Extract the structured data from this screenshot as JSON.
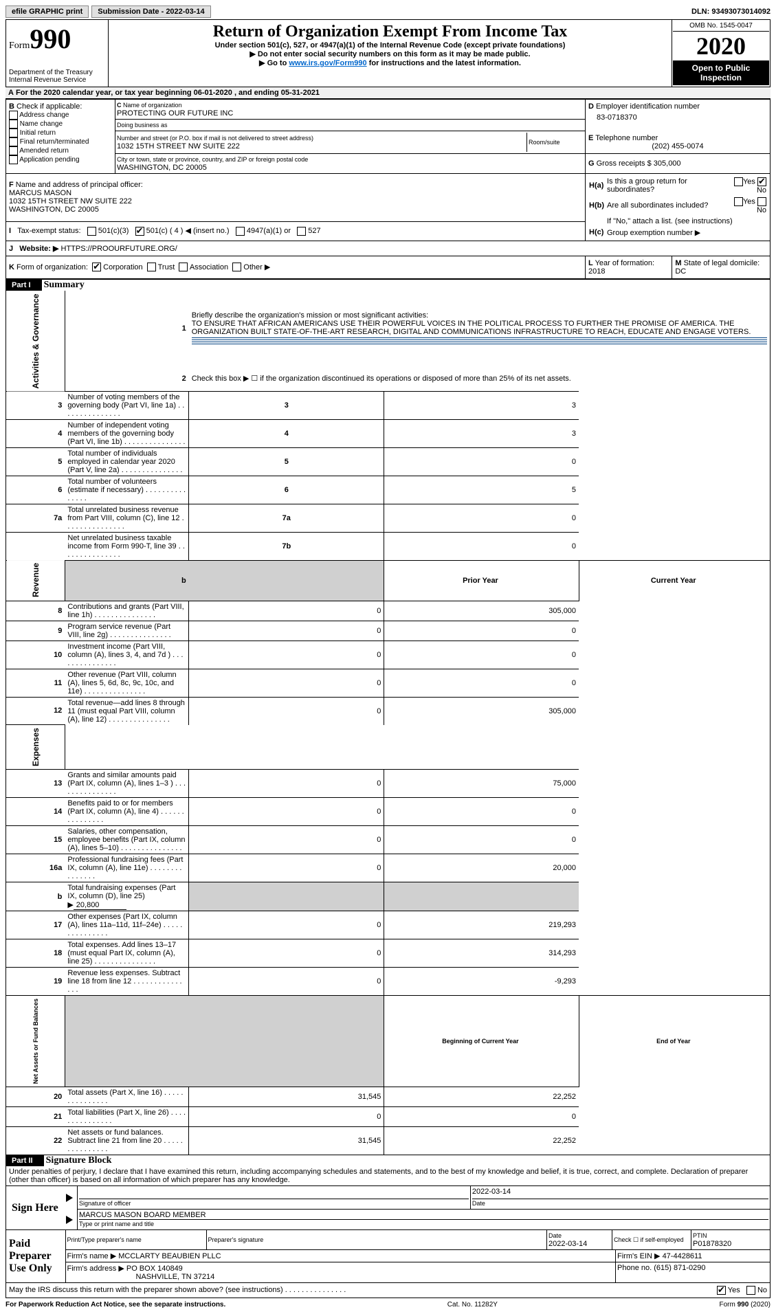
{
  "topbar": {
    "efile": "efile GRAPHIC print",
    "submission_label": "Submission Date - 2022-03-14",
    "dln": "DLN: 93493073014092"
  },
  "header": {
    "form_prefix": "Form",
    "form_num": "990",
    "dept1": "Department of the Treasury",
    "dept2": "Internal Revenue Service",
    "title": "Return of Organization Exempt From Income Tax",
    "subtitle": "Under section 501(c), 527, or 4947(a)(1) of the Internal Revenue Code (except private foundations)",
    "note1": "Do not enter social security numbers on this form as it may be made public.",
    "note2_pre": "Go to ",
    "note2_link": "www.irs.gov/Form990",
    "note2_post": " for instructions and the latest information.",
    "omb": "OMB No. 1545-0047",
    "year": "2020",
    "open": "Open to Public Inspection"
  },
  "A": {
    "text": "For the 2020 calendar year, or tax year beginning 06-01-2020    , and ending 05-31-2021"
  },
  "B": {
    "label": "Check if applicable:",
    "opts": [
      "Address change",
      "Name change",
      "Initial return",
      "Final return/terminated",
      "Amended return",
      "Application pending"
    ]
  },
  "C": {
    "name_label": "Name of organization",
    "name": "PROTECTING OUR FUTURE INC",
    "dba_label": "Doing business as",
    "street_label": "Number and street (or P.O. box if mail is not delivered to street address)",
    "room_label": "Room/suite",
    "street": "1032 15TH STREET NW SUITE 222",
    "city_label": "City or town, state or province, country, and ZIP or foreign postal code",
    "city": "WASHINGTON, DC  20005"
  },
  "D": {
    "label": "Employer identification number",
    "val": "83-0718370"
  },
  "E": {
    "label": "Telephone number",
    "val": "(202) 455-0074"
  },
  "F": {
    "label": "Name and address of principal officer:",
    "name": "MARCUS MASON",
    "addr1": "1032 15TH STREET NW SUITE 222",
    "addr2": "WASHINGTON, DC  20005"
  },
  "G": {
    "label": "Gross receipts $",
    "val": "305,000"
  },
  "H": {
    "a": "Is this a group return for subordinates?",
    "b": "Are all subordinates included?",
    "b_note": "If \"No,\" attach a list. (see instructions)",
    "c": "Group exemption number ▶",
    "yes": "Yes",
    "no": "No"
  },
  "I": {
    "label": "Tax-exempt status:",
    "o1": "501(c)(3)",
    "o2": "501(c) ( 4 ) ◀ (insert no.)",
    "o3": "4947(a)(1) or",
    "o4": "527"
  },
  "J": {
    "label": "Website: ▶",
    "val": "HTTPS://PROOURFUTURE.ORG/"
  },
  "K": {
    "label": "Form of organization:",
    "o1": "Corporation",
    "o2": "Trust",
    "o3": "Association",
    "o4": "Other ▶"
  },
  "L": {
    "label": "Year of formation:",
    "val": "2018"
  },
  "M": {
    "label": "State of legal domicile:",
    "val": "DC"
  },
  "part1": {
    "header_num": "Part I",
    "header_title": "Summary",
    "line1_label": "Briefly describe the organization's mission or most significant activities:",
    "line1_text": "TO ENSURE THAT AFRICAN AMERICANS USE THEIR POWERFUL VOICES IN THE POLITICAL PROCESS TO FURTHER THE PROMISE OF AMERICA. THE ORGANIZATION BUILT STATE-OF-THE-ART RESEARCH, DIGITAL AND COMMUNICATIONS INFRASTRUCTURE TO REACH, EDUCATE AND ENGAGE VOTERS.",
    "line2": "Check this box ▶ ☐ if the organization discontinued its operations or disposed of more than 25% of its net assets.",
    "lines_gov": [
      {
        "n": "3",
        "d": "Number of voting members of the governing body (Part VI, line 1a)",
        "box": "3",
        "v": "3"
      },
      {
        "n": "4",
        "d": "Number of independent voting members of the governing body (Part VI, line 1b)",
        "box": "4",
        "v": "3"
      },
      {
        "n": "5",
        "d": "Total number of individuals employed in calendar year 2020 (Part V, line 2a)",
        "box": "5",
        "v": "0"
      },
      {
        "n": "6",
        "d": "Total number of volunteers (estimate if necessary)",
        "box": "6",
        "v": "5"
      },
      {
        "n": "7a",
        "d": "Total unrelated business revenue from Part VIII, column (C), line 12",
        "box": "7a",
        "v": "0"
      },
      {
        "n": "",
        "d": "Net unrelated business taxable income from Form 990-T, line 39",
        "box": "7b",
        "v": "0"
      }
    ],
    "col_prior": "Prior Year",
    "col_current": "Current Year",
    "lines_rev": [
      {
        "n": "8",
        "d": "Contributions and grants (Part VIII, line 1h)",
        "p": "0",
        "c": "305,000"
      },
      {
        "n": "9",
        "d": "Program service revenue (Part VIII, line 2g)",
        "p": "0",
        "c": "0"
      },
      {
        "n": "10",
        "d": "Investment income (Part VIII, column (A), lines 3, 4, and 7d )",
        "p": "0",
        "c": "0"
      },
      {
        "n": "11",
        "d": "Other revenue (Part VIII, column (A), lines 5, 6d, 8c, 9c, 10c, and 11e)",
        "p": "0",
        "c": "0"
      },
      {
        "n": "12",
        "d": "Total revenue—add lines 8 through 11 (must equal Part VIII, column (A), line 12)",
        "p": "0",
        "c": "305,000"
      }
    ],
    "lines_exp": [
      {
        "n": "13",
        "d": "Grants and similar amounts paid (Part IX, column (A), lines 1–3 )",
        "p": "0",
        "c": "75,000"
      },
      {
        "n": "14",
        "d": "Benefits paid to or for members (Part IX, column (A), line 4)",
        "p": "0",
        "c": "0"
      },
      {
        "n": "15",
        "d": "Salaries, other compensation, employee benefits (Part IX, column (A), lines 5–10)",
        "p": "0",
        "c": "0"
      },
      {
        "n": "16a",
        "d": "Professional fundraising fees (Part IX, column (A), line 11e)",
        "p": "0",
        "c": "20,000"
      }
    ],
    "line_b": {
      "n": "b",
      "d": "Total fundraising expenses (Part IX, column (D), line 25) ▶",
      "v": "20,800"
    },
    "lines_exp2": [
      {
        "n": "17",
        "d": "Other expenses (Part IX, column (A), lines 11a–11d, 11f–24e)",
        "p": "0",
        "c": "219,293"
      },
      {
        "n": "18",
        "d": "Total expenses. Add lines 13–17 (must equal Part IX, column (A), line 25)",
        "p": "0",
        "c": "314,293"
      },
      {
        "n": "19",
        "d": "Revenue less expenses. Subtract line 18 from line 12",
        "p": "0",
        "c": "-9,293"
      }
    ],
    "col_begin": "Beginning of Current Year",
    "col_end": "End of Year",
    "lines_net": [
      {
        "n": "20",
        "d": "Total assets (Part X, line 16)",
        "p": "31,545",
        "c": "22,252"
      },
      {
        "n": "21",
        "d": "Total liabilities (Part X, line 26)",
        "p": "0",
        "c": "0"
      },
      {
        "n": "22",
        "d": "Net assets or fund balances. Subtract line 21 from line 20",
        "p": "31,545",
        "c": "22,252"
      }
    ],
    "vlabels": {
      "gov": "Activities & Governance",
      "rev": "Revenue",
      "exp": "Expenses",
      "net": "Net Assets or Fund Balances"
    }
  },
  "part2": {
    "header_num": "Part II",
    "header_title": "Signature Block",
    "penalties": "Under penalties of perjury, I declare that I have examined this return, including accompanying schedules and statements, and to the best of my knowledge and belief, it is true, correct, and complete. Declaration of preparer (other than officer) is based on all information of which preparer has any knowledge.",
    "sign_here": "Sign Here",
    "sig_officer": "Signature of officer",
    "sig_date": "2022-03-14",
    "date_label": "Date",
    "officer_name": "MARCUS MASON  BOARD MEMBER",
    "type_name": "Type or print name and title",
    "paid": "Paid Preparer Use Only",
    "print_name_label": "Print/Type preparer's name",
    "prep_sig_label": "Preparer's signature",
    "prep_date_label": "Date",
    "prep_date": "2022-03-14",
    "check_if": "Check ☐ if self-employed",
    "ptin_label": "PTIN",
    "ptin": "P01878320",
    "firm_name_label": "Firm's name    ▶",
    "firm_name": "MCCLARTY BEAUBIEN PLLC",
    "firm_ein_label": "Firm's EIN ▶",
    "firm_ein": "47-4428611",
    "firm_addr_label": "Firm's address ▶",
    "firm_addr": "PO BOX 140849",
    "firm_addr2": "NASHVILLE, TN  37214",
    "phone_label": "Phone no.",
    "phone": "(615) 871-0290",
    "discuss": "May the IRS discuss this return with the preparer shown above? (see instructions)",
    "yes": "Yes",
    "no": "No"
  },
  "footer": {
    "left": "For Paperwork Reduction Act Notice, see the separate instructions.",
    "mid": "Cat. No. 11282Y",
    "right": "Form 990 (2020)"
  }
}
